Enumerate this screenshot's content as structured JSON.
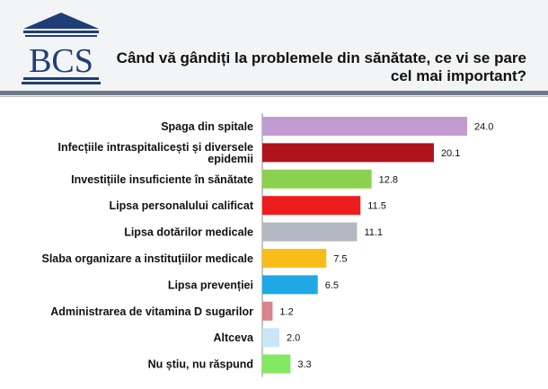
{
  "header": {
    "logo_text": "BCS",
    "title_line1": "Când vă gândiți la problemele din sănătate, ce vi se pare",
    "title_line2": "cel mai important?"
  },
  "chart_data": {
    "type": "bar",
    "orientation": "horizontal",
    "categories": [
      [
        "Spaga din spitale"
      ],
      [
        "Infecțiile intraspitalicești și diversele",
        "epidemii"
      ],
      [
        "Investițiile insuficiente în sănătate"
      ],
      [
        "Lipsa personalului calificat"
      ],
      [
        "Lipsa dotărilor medicale"
      ],
      [
        "Slaba organizare a instituțiilor medicale"
      ],
      [
        "Lipsa prevenției"
      ],
      [
        "Administrarea de vitamina D sugarilor"
      ],
      [
        "Altceva"
      ],
      [
        "Nu știu, nu răspund"
      ]
    ],
    "values": [
      24.0,
      20.1,
      12.8,
      11.5,
      11.1,
      7.5,
      6.5,
      1.2,
      2.0,
      3.3
    ],
    "value_labels": [
      "24.0",
      "20.1",
      "12.8",
      "11.5",
      "11.1",
      "7.5",
      "6.5",
      "1.2",
      "2.0",
      "3.3"
    ],
    "colors": [
      "#c39bd3",
      "#b0141a",
      "#8bd150",
      "#ee1c1c",
      "#b3b9c2",
      "#f8bd19",
      "#1fa8e4",
      "#d9838a",
      "#cbe6f8",
      "#82e860"
    ],
    "xlim": [
      0,
      25
    ],
    "grid": false,
    "legend": "none"
  }
}
